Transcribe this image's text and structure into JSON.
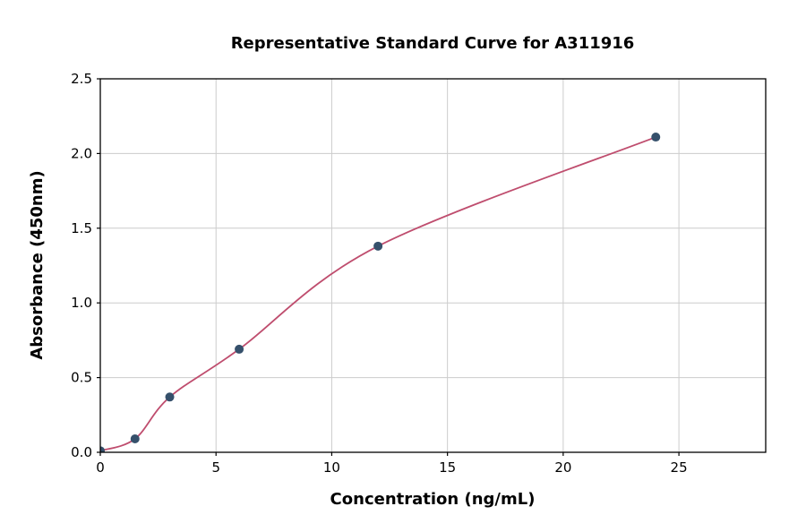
{
  "chart_data": {
    "type": "scatter",
    "title": "Representative Standard Curve for A311916",
    "xlabel": "Concentration (ng/mL)",
    "ylabel": "Absorbance (450nm)",
    "xlim": [
      0,
      28.75
    ],
    "ylim": [
      0,
      2.5
    ],
    "xticks": [
      0,
      5,
      10,
      15,
      20,
      25
    ],
    "yticks": [
      0.0,
      0.5,
      1.0,
      1.5,
      2.0,
      2.5
    ],
    "grid": true,
    "points": {
      "x": [
        0,
        1.5,
        3,
        6,
        12,
        24
      ],
      "y": [
        0.01,
        0.09,
        0.37,
        0.69,
        1.38,
        2.11
      ]
    },
    "series": [
      {
        "name": "standard-points",
        "type": "scatter"
      },
      {
        "name": "fit-curve",
        "type": "line"
      }
    ],
    "colors": {
      "point": "#35506b",
      "curve": "#bf4d6e",
      "grid": "#cccccc",
      "axis": "#000000",
      "background": "#ffffff"
    }
  }
}
